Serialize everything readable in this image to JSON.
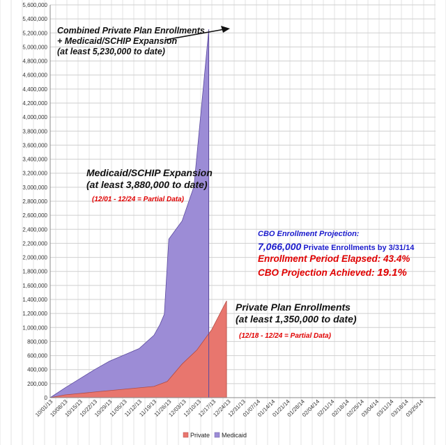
{
  "chart_data": {
    "type": "area",
    "stacked": true,
    "ylim": [
      0,
      5600000
    ],
    "ytick_step": 200000,
    "yticks": [
      "0",
      "200,000",
      "400,000",
      "600,000",
      "800,000",
      "1,000,000",
      "1,200,000",
      "1,400,000",
      "1,600,000",
      "1,800,000",
      "2,000,000",
      "2,200,000",
      "2,400,000",
      "2,600,000",
      "2,800,000",
      "3,000,000",
      "3,200,000",
      "3,400,000",
      "3,600,000",
      "3,800,000",
      "4,000,000",
      "4,200,000",
      "4,400,000",
      "4,600,000",
      "4,800,000",
      "5,000,000",
      "5,200,000",
      "5,400,000",
      "5,600,000"
    ],
    "x_labels": [
      "10/01/13",
      "10/08/13",
      "10/15/13",
      "10/22/13",
      "10/29/13",
      "11/05/13",
      "11/12/13",
      "11/19/13",
      "11/26/13",
      "12/03/13",
      "12/10/13",
      "12/17/13",
      "12/24/13",
      "12/31/13",
      "01/07/14",
      "01/14/14",
      "01/21/14",
      "01/28/14",
      "02/04/14",
      "02/11/14",
      "02/18/14",
      "02/25/14",
      "03/04/14",
      "03/11/14",
      "03/18/14",
      "03/25/14"
    ],
    "series": [
      {
        "name": "Private",
        "color": "#e8766e",
        "points": [
          [
            0,
            0
          ],
          [
            1,
            40000
          ],
          [
            2,
            60000
          ],
          [
            3,
            80000
          ],
          [
            4,
            100000
          ],
          [
            5,
            120000
          ],
          [
            6,
            140000
          ],
          [
            7,
            160000
          ],
          [
            7.9,
            230000
          ],
          [
            8.9,
            480000
          ],
          [
            9.9,
            680000
          ],
          [
            10.9,
            970000
          ],
          [
            11.9,
            1380000
          ]
        ]
      },
      {
        "name": "Medicaid",
        "color": "#9c8cd6",
        "points": [
          [
            0,
            0
          ],
          [
            1,
            140000
          ],
          [
            2,
            270000
          ],
          [
            3,
            400000
          ],
          [
            4,
            520000
          ],
          [
            5,
            610000
          ],
          [
            6,
            700000
          ],
          [
            7,
            890000
          ],
          [
            7.4,
            1040000
          ],
          [
            7.7,
            1190000
          ],
          [
            8.0,
            2260000
          ],
          [
            8.9,
            2520000
          ],
          [
            9.7,
            3010000
          ],
          [
            10.7,
            5250000
          ]
        ]
      }
    ],
    "annotations": {
      "combined": [
        "Combined Private Plan Enrollments",
        "+ Medicaid/SCHIP Expansion",
        "(at least 5,230,000 to date)"
      ],
      "medicaid": [
        "Medicaid/SCHIP Expansion",
        "(at least 3,880,000 to date)"
      ],
      "medicaid_note": "(12/01 - 12/24 = Partial Data)",
      "private": [
        "Private Plan Enrollments",
        "(at least 1,350,000 to date)"
      ],
      "private_note": "(12/18 - 12/24 = Partial Data)",
      "cbo_title": "CBO Enrollment Projection:",
      "cbo_value": "7,066,000",
      "cbo_value_suffix": " Private Enrollments by 3/31/14",
      "elapsed_label": "Enrollment Period Elapsed: ",
      "elapsed_value": "43.4%",
      "achieved_label": "CBO Projection Achieved: ",
      "achieved_value": "19.1%"
    },
    "legend": [
      "Private",
      "Medicaid"
    ]
  }
}
